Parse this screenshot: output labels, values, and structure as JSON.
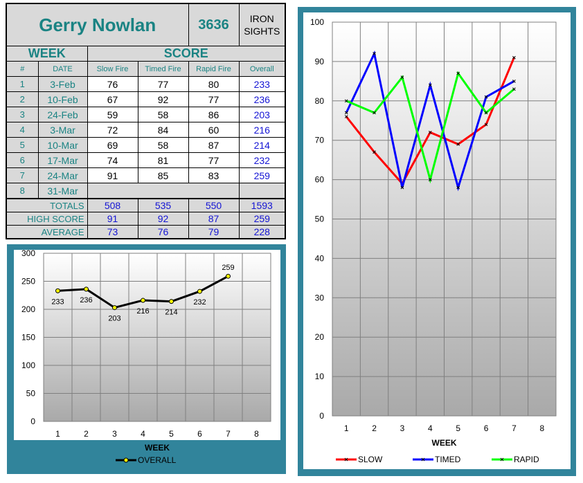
{
  "shooter": {
    "name": "Gerry Nowlan",
    "id": "3636",
    "category": "IRON SIGHTS"
  },
  "headers": {
    "week": "WEEK",
    "score": "SCORE",
    "num": "#",
    "date": "DATE",
    "slow": "Slow Fire",
    "timed": "Timed Fire",
    "rapid": "Rapid Fire",
    "overall": "Overall"
  },
  "weeks": [
    {
      "num": "1",
      "date": "3-Feb",
      "slow": "76",
      "timed": "77",
      "rapid": "80",
      "overall": "233"
    },
    {
      "num": "2",
      "date": "10-Feb",
      "slow": "67",
      "timed": "92",
      "rapid": "77",
      "overall": "236"
    },
    {
      "num": "3",
      "date": "24-Feb",
      "slow": "59",
      "timed": "58",
      "rapid": "86",
      "overall": "203"
    },
    {
      "num": "4",
      "date": "3-Mar",
      "slow": "72",
      "timed": "84",
      "rapid": "60",
      "overall": "216"
    },
    {
      "num": "5",
      "date": "10-Mar",
      "slow": "69",
      "timed": "58",
      "rapid": "87",
      "overall": "214"
    },
    {
      "num": "6",
      "date": "17-Mar",
      "slow": "74",
      "timed": "81",
      "rapid": "77",
      "overall": "232"
    },
    {
      "num": "7",
      "date": "24-Mar",
      "slow": "91",
      "timed": "85",
      "rapid": "83",
      "overall": "259"
    },
    {
      "num": "8",
      "date": "31-Mar",
      "slow": "",
      "timed": "",
      "rapid": "",
      "overall": ""
    }
  ],
  "summary": [
    {
      "label": "TOTALS",
      "slow": "508",
      "timed": "535",
      "rapid": "550",
      "overall": "1593"
    },
    {
      "label": "HIGH SCORE",
      "slow": "91",
      "timed": "92",
      "rapid": "87",
      "overall": "259"
    },
    {
      "label": "AVERAGE",
      "slow": "73",
      "timed": "76",
      "rapid": "79",
      "overall": "228"
    }
  ],
  "chart_data": [
    {
      "type": "line",
      "x": [
        1,
        2,
        3,
        4,
        5,
        6,
        7
      ],
      "categories": [
        "1",
        "2",
        "3",
        "4",
        "5",
        "6",
        "7",
        "8"
      ],
      "series": [
        {
          "name": "OVERALL",
          "values": [
            233,
            236,
            203,
            216,
            214,
            232,
            259
          ],
          "color": "#000000",
          "marker_color": "#ffff00"
        }
      ],
      "data_labels": [
        "233",
        "236",
        "203",
        "216",
        "214",
        "232",
        "259"
      ],
      "yticks": [
        "0",
        "50",
        "100",
        "150",
        "200",
        "250",
        "300"
      ],
      "xlabel": "WEEK",
      "ylabel": "",
      "ylim": [
        0,
        300
      ],
      "xlim": [
        0.5,
        8.5
      ],
      "grid": true,
      "legend": "bottom",
      "frame_color": "#31849b"
    },
    {
      "type": "line",
      "x": [
        1,
        2,
        3,
        4,
        5,
        6,
        7
      ],
      "categories": [
        "1",
        "2",
        "3",
        "4",
        "5",
        "6",
        "7",
        "8"
      ],
      "series": [
        {
          "name": "SLOW",
          "values": [
            76,
            67,
            59,
            72,
            69,
            74,
            91
          ],
          "color": "#ff0000"
        },
        {
          "name": "TIMED",
          "values": [
            77,
            92,
            58,
            84,
            58,
            81,
            85
          ],
          "color": "#0000ff"
        },
        {
          "name": "RAPID",
          "values": [
            80,
            77,
            86,
            60,
            87,
            77,
            83
          ],
          "color": "#00ff00"
        }
      ],
      "yticks": [
        "0",
        "10",
        "20",
        "30",
        "40",
        "50",
        "60",
        "70",
        "80",
        "90",
        "100"
      ],
      "xlabel": "WEEK",
      "ylabel": "",
      "ylim": [
        0,
        100
      ],
      "xlim": [
        0.5,
        8.5
      ],
      "grid": true,
      "legend": "bottom",
      "frame_color": "#31849b"
    }
  ]
}
